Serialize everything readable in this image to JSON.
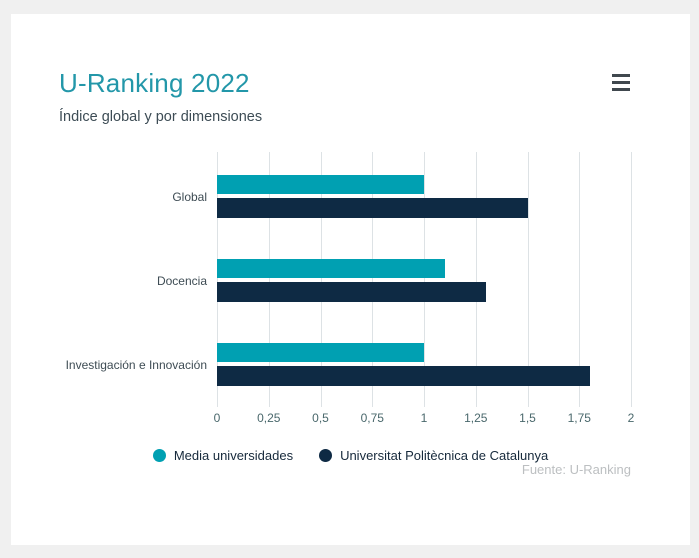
{
  "card": {
    "title": "U-Ranking 2022",
    "subtitle": "Índice global y por dimensiones",
    "menu_icon": "hamburger-menu-icon",
    "source": "Fuente: U-Ranking"
  },
  "colors": {
    "background": "#f0f0f0",
    "card_background": "#ffffff",
    "title_text": "#2397a9",
    "subtitle_text": "#3d4c55",
    "series_teal": "#00a0b2",
    "series_navy": "#0e2a44",
    "gridline": "#dde2e5",
    "tick_label": "#4a686c",
    "category_label": "#3e4c54",
    "legend_text": "#16293b",
    "source_text": "#bcbfc1",
    "menu_icon": "#40484e"
  },
  "chart_data": {
    "type": "bar",
    "orientation": "horizontal",
    "title": "U-Ranking 2022",
    "subtitle": "Índice global y por dimensiones",
    "categories": [
      "Global",
      "Docencia",
      "Investigación e Innovación"
    ],
    "series": [
      {
        "name": "Media universidades",
        "color": "#00a0b2",
        "values": [
          1.0,
          1.1,
          1.0
        ]
      },
      {
        "name": "Universitat Politècnica de Catalunya",
        "color": "#0e2a44",
        "values": [
          1.5,
          1.3,
          1.8
        ]
      }
    ],
    "xlim": [
      0,
      2
    ],
    "x_ticks": [
      0,
      0.25,
      0.5,
      0.75,
      1,
      1.25,
      1.5,
      1.75,
      2
    ],
    "x_tick_labels": [
      "0",
      "0,25",
      "0,5",
      "0,75",
      "1",
      "1,25",
      "1,5",
      "1,75",
      "2"
    ],
    "grid": true,
    "legend_position": "bottom",
    "source": "Fuente: U-Ranking"
  }
}
